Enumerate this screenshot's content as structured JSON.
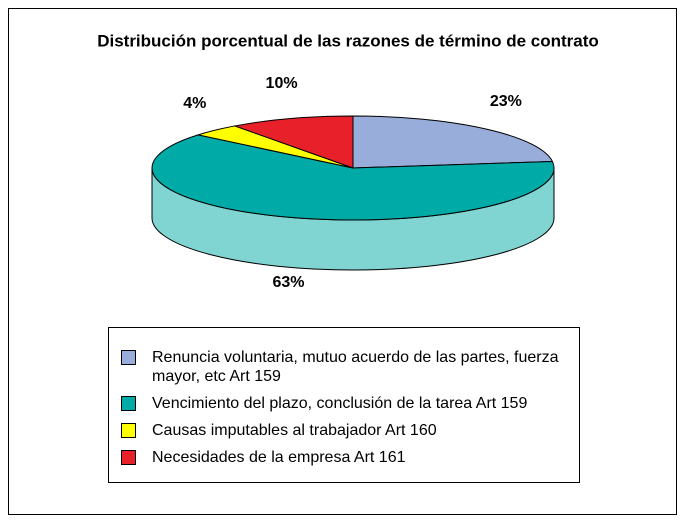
{
  "chart_data": {
    "type": "pie3d",
    "title": "Distribución porcentual de las razones de término de contrato",
    "categories": [
      "Renuncia voluntaria, mutuo acuerdo de las partes, fuerza mayor, etc   Art 159",
      "Vencimiento del plazo, conclusión de la tarea Art 159",
      "Causas imputables al trabajador Art 160",
      "Necesidades de la empresa Art 161"
    ],
    "values": [
      23,
      63,
      4,
      10
    ],
    "value_labels": [
      "23%",
      "63%",
      "4%",
      "10%"
    ],
    "colors": [
      "#99addb",
      "#00aaa6",
      "#ffff00",
      "#e8202a"
    ]
  }
}
